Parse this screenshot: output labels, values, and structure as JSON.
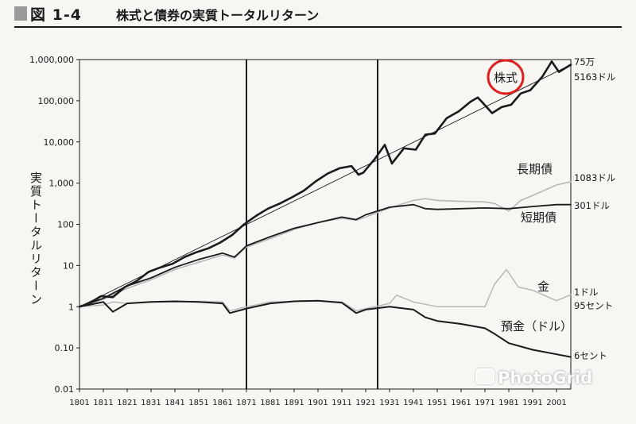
{
  "header": {
    "figure_number": "図 1-4",
    "title": "株式と債券の実質トータルリターン"
  },
  "watermark": "PhotoGrid",
  "colors": {
    "background": "#f7f6f3",
    "ink": "#1a1a1a",
    "light_series": "#b8b8b8",
    "highlight_circle": "#e02020"
  },
  "chart_data": {
    "type": "line",
    "title": "",
    "xlabel": "",
    "ylabel": "実質トータルリターン",
    "y_scale": "log",
    "xlim": [
      1801,
      2007
    ],
    "ylim": [
      0.01,
      1000000
    ],
    "grid": false,
    "x_ticks": [
      "1801",
      "1811",
      "1821",
      "1831",
      "1841",
      "1851",
      "1861",
      "1871",
      "1881",
      "1891",
      "1901",
      "1911",
      "1921",
      "1931",
      "1941",
      "1951",
      "1961",
      "1971",
      "1981",
      "1991",
      "2001"
    ],
    "y_ticks": [
      {
        "value": 1000000,
        "label": "1,000,000"
      },
      {
        "value": 100000,
        "label": "100,000"
      },
      {
        "value": 10000,
        "label": "10,000"
      },
      {
        "value": 1000,
        "label": "1,000"
      },
      {
        "value": 100,
        "label": "100"
      },
      {
        "value": 10,
        "label": "10"
      },
      {
        "value": 1,
        "label": "1"
      },
      {
        "value": 0.1,
        "label": "0.10"
      },
      {
        "value": 0.01,
        "label": "0.01"
      }
    ],
    "vertical_lines": [
      1871,
      1926
    ],
    "series": [
      {
        "name": "株式",
        "end_label": [
          "75万",
          "5163ドル"
        ],
        "color": "#1a1a1a",
        "width": 2.6,
        "points": [
          [
            1801,
            1
          ],
          [
            1805,
            1.2
          ],
          [
            1810,
            1.8
          ],
          [
            1815,
            1.7
          ],
          [
            1820,
            3
          ],
          [
            1825,
            4.2
          ],
          [
            1830,
            7
          ],
          [
            1835,
            9
          ],
          [
            1840,
            11
          ],
          [
            1845,
            16
          ],
          [
            1850,
            21
          ],
          [
            1855,
            26
          ],
          [
            1860,
            36
          ],
          [
            1865,
            55
          ],
          [
            1870,
            100
          ],
          [
            1875,
            160
          ],
          [
            1880,
            240
          ],
          [
            1885,
            320
          ],
          [
            1890,
            450
          ],
          [
            1895,
            650
          ],
          [
            1900,
            1100
          ],
          [
            1905,
            1700
          ],
          [
            1910,
            2300
          ],
          [
            1915,
            2600
          ],
          [
            1918,
            1600
          ],
          [
            1920,
            1800
          ],
          [
            1925,
            4000
          ],
          [
            1929,
            8500
          ],
          [
            1932,
            3000
          ],
          [
            1937,
            7000
          ],
          [
            1942,
            6500
          ],
          [
            1946,
            15000
          ],
          [
            1950,
            16000
          ],
          [
            1955,
            38000
          ],
          [
            1960,
            55000
          ],
          [
            1965,
            95000
          ],
          [
            1968,
            120000
          ],
          [
            1970,
            90000
          ],
          [
            1974,
            50000
          ],
          [
            1978,
            70000
          ],
          [
            1982,
            80000
          ],
          [
            1986,
            150000
          ],
          [
            1990,
            180000
          ],
          [
            1995,
            380000
          ],
          [
            1999,
            900000
          ],
          [
            2002,
            500000
          ],
          [
            2007,
            750000
          ]
        ]
      },
      {
        "name": "",
        "color": "#1a1a1a",
        "width": 0.9,
        "points": [
          [
            1801,
            1
          ],
          [
            2007,
            751000
          ]
        ]
      },
      {
        "name": "長期債",
        "end_label": [
          "1083ドル"
        ],
        "color": "#b8b8b8",
        "width": 1.6,
        "points": [
          [
            1801,
            1
          ],
          [
            1811,
            1.5
          ],
          [
            1821,
            2.8
          ],
          [
            1831,
            4.5
          ],
          [
            1841,
            8
          ],
          [
            1851,
            12
          ],
          [
            1861,
            18
          ],
          [
            1866,
            15
          ],
          [
            1871,
            28
          ],
          [
            1881,
            45
          ],
          [
            1891,
            75
          ],
          [
            1901,
            110
          ],
          [
            1911,
            140
          ],
          [
            1917,
            125
          ],
          [
            1921,
            150
          ],
          [
            1931,
            250
          ],
          [
            1941,
            380
          ],
          [
            1946,
            420
          ],
          [
            1951,
            380
          ],
          [
            1961,
            360
          ],
          [
            1971,
            350
          ],
          [
            1975,
            320
          ],
          [
            1981,
            210
          ],
          [
            1986,
            380
          ],
          [
            1991,
            500
          ],
          [
            2001,
            900
          ],
          [
            2007,
            1083
          ]
        ]
      },
      {
        "name": "短期債",
        "end_label": [
          "301ドル"
        ],
        "color": "#1a1a1a",
        "width": 1.8,
        "points": [
          [
            1801,
            1
          ],
          [
            1811,
            1.6
          ],
          [
            1821,
            3.2
          ],
          [
            1831,
            5
          ],
          [
            1841,
            9
          ],
          [
            1851,
            14
          ],
          [
            1861,
            20
          ],
          [
            1866,
            16
          ],
          [
            1871,
            30
          ],
          [
            1881,
            50
          ],
          [
            1891,
            80
          ],
          [
            1901,
            110
          ],
          [
            1911,
            150
          ],
          [
            1917,
            130
          ],
          [
            1921,
            170
          ],
          [
            1931,
            260
          ],
          [
            1941,
            300
          ],
          [
            1946,
            240
          ],
          [
            1951,
            230
          ],
          [
            1961,
            240
          ],
          [
            1971,
            250
          ],
          [
            1981,
            240
          ],
          [
            1991,
            270
          ],
          [
            2001,
            300
          ],
          [
            2007,
            301
          ]
        ]
      },
      {
        "name": "金",
        "end_label": [
          "1ドル",
          "95セント"
        ],
        "color": "#b8b8b8",
        "width": 1.5,
        "points": [
          [
            1801,
            1
          ],
          [
            1811,
            1.1
          ],
          [
            1815,
            1.3
          ],
          [
            1821,
            1.2
          ],
          [
            1831,
            1.3
          ],
          [
            1841,
            1.3
          ],
          [
            1851,
            1.35
          ],
          [
            1861,
            1.3
          ],
          [
            1864,
            0.8
          ],
          [
            1871,
            1.0
          ],
          [
            1881,
            1.3
          ],
          [
            1891,
            1.35
          ],
          [
            1901,
            1.4
          ],
          [
            1911,
            1.3
          ],
          [
            1917,
            0.8
          ],
          [
            1921,
            0.9
          ],
          [
            1931,
            1.2
          ],
          [
            1934,
            1.9
          ],
          [
            1941,
            1.3
          ],
          [
            1951,
            1.0
          ],
          [
            1961,
            1.0
          ],
          [
            1971,
            1.0
          ],
          [
            1975,
            3.5
          ],
          [
            1980,
            8
          ],
          [
            1985,
            3
          ],
          [
            1991,
            2.5
          ],
          [
            2001,
            1.4
          ],
          [
            2007,
            1.95
          ]
        ]
      },
      {
        "name": "預金（ドル）",
        "end_label": [
          "6セント"
        ],
        "color": "#1a1a1a",
        "width": 2.0,
        "points": [
          [
            1801,
            1
          ],
          [
            1811,
            1.3
          ],
          [
            1815,
            0.75
          ],
          [
            1821,
            1.2
          ],
          [
            1831,
            1.3
          ],
          [
            1841,
            1.35
          ],
          [
            1851,
            1.3
          ],
          [
            1861,
            1.2
          ],
          [
            1864,
            0.7
          ],
          [
            1871,
            0.9
          ],
          [
            1881,
            1.2
          ],
          [
            1891,
            1.35
          ],
          [
            1901,
            1.4
          ],
          [
            1911,
            1.25
          ],
          [
            1917,
            0.7
          ],
          [
            1921,
            0.85
          ],
          [
            1931,
            1.0
          ],
          [
            1941,
            0.85
          ],
          [
            1946,
            0.55
          ],
          [
            1951,
            0.45
          ],
          [
            1961,
            0.38
          ],
          [
            1971,
            0.3
          ],
          [
            1975,
            0.22
          ],
          [
            1981,
            0.13
          ],
          [
            1991,
            0.09
          ],
          [
            2001,
            0.07
          ],
          [
            2007,
            0.06
          ]
        ]
      }
    ],
    "annotations": {
      "circled_label": "株式",
      "labels": [
        {
          "series": "長期債",
          "text": "長期債"
        },
        {
          "series": "短期債",
          "text": "短期債"
        },
        {
          "series": "金",
          "text": "金"
        },
        {
          "series": "預金（ドル）",
          "text": "預金（ドル）"
        }
      ]
    }
  }
}
